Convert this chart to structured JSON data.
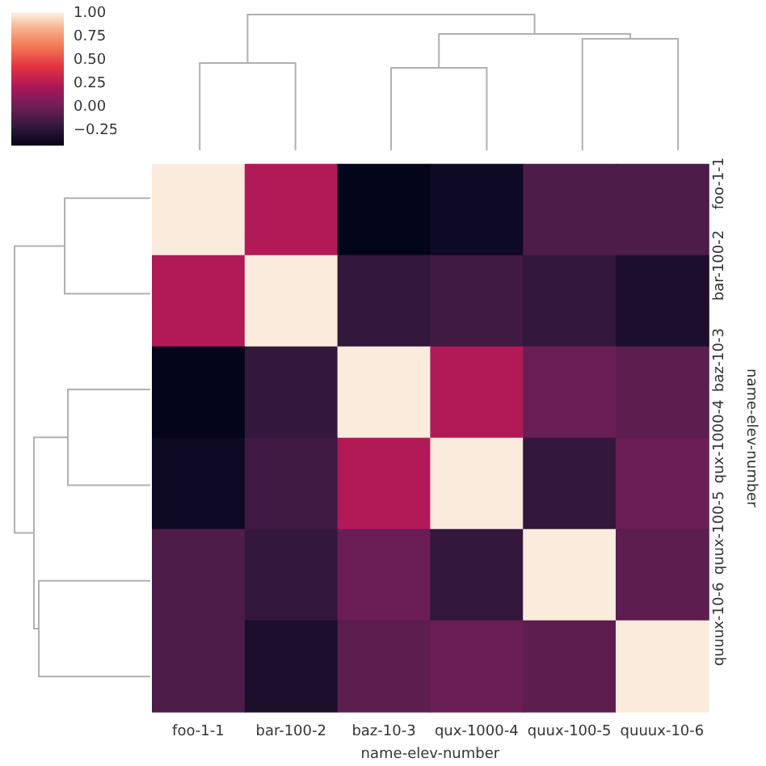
{
  "chart_data": {
    "type": "heatmap",
    "xlabel": "name-elev-number",
    "ylabel": "name-elev-number",
    "categories": [
      "foo-1-1",
      "bar-100-2",
      "baz-10-3",
      "qux-1000-4",
      "quux-100-5",
      "quuux-10-6"
    ],
    "y_categories": [
      "foo-1-1",
      "bar-100-2",
      "baz-10-3",
      "qux-1000-4",
      "quux-100-5",
      "quuux-10-6"
    ],
    "cells": [
      [
        1,
        0.25,
        -0.4,
        -0.35,
        -0.1,
        -0.1
      ],
      [
        0.25,
        1,
        -0.2,
        -0.15,
        -0.2,
        -0.3
      ],
      [
        -0.4,
        -0.2,
        1,
        0.25,
        0,
        -0.05
      ],
      [
        -0.35,
        -0.15,
        0.25,
        1,
        -0.2,
        0
      ],
      [
        -0.1,
        -0.2,
        0,
        -0.2,
        1,
        -0.05
      ],
      [
        -0.1,
        -0.3,
        -0.05,
        0,
        -0.05,
        1
      ]
    ],
    "clim": [
      -0.4,
      1
    ],
    "cticks": [
      {
        "value": -0.25,
        "label": "−0.25"
      },
      {
        "value": 0,
        "label": "0.00"
      },
      {
        "value": 0.25,
        "label": "0.25"
      },
      {
        "value": 0.5,
        "label": "0.50"
      },
      {
        "value": 0.75,
        "label": "0.75"
      },
      {
        "value": 1,
        "label": "1.00"
      }
    ]
  }
}
